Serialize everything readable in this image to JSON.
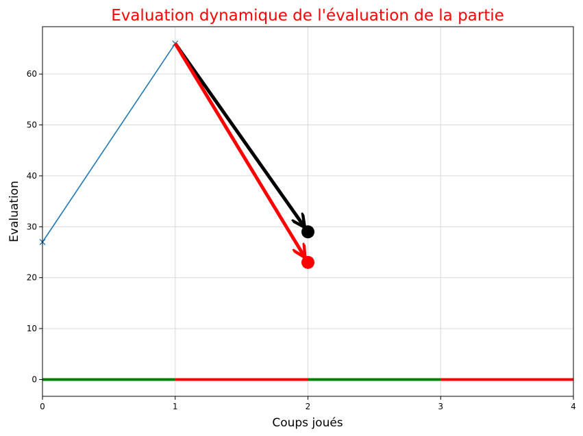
{
  "chart_data": {
    "type": "line",
    "title": "Evaluation dynamique de l'évaluation de la partie",
    "xlabel": "Coups joués",
    "ylabel": "Evaluation",
    "xlim": [
      0,
      4
    ],
    "ylim": [
      -3.3,
      69.3
    ],
    "xticks": [
      0,
      1,
      2,
      3,
      4
    ],
    "yticks": [
      0,
      10,
      20,
      30,
      40,
      50,
      60
    ],
    "grid": true,
    "series": [
      {
        "x": [
          0,
          1
        ],
        "y": [
          27,
          66
        ],
        "color": "#1f77b4",
        "marker": "x"
      }
    ],
    "arrows": [
      {
        "from": [
          1,
          66
        ],
        "to": [
          2,
          29
        ],
        "color": "#000000"
      },
      {
        "from": [
          1,
          66
        ],
        "to": [
          2,
          23
        ],
        "color": "#ff0000"
      }
    ],
    "points": [
      {
        "x": 2,
        "y": 29,
        "color": "#000000"
      },
      {
        "x": 2,
        "y": 23,
        "color": "#ff0000"
      }
    ],
    "baseline_segments": [
      {
        "x": [
          0,
          1
        ],
        "y": 0,
        "color": "#008000"
      },
      {
        "x": [
          1,
          2
        ],
        "y": 0,
        "color": "#ff0000"
      },
      {
        "x": [
          2,
          3
        ],
        "y": 0,
        "color": "#008000"
      },
      {
        "x": [
          3,
          4
        ],
        "y": 0,
        "color": "#ff0000"
      }
    ],
    "colors": {
      "title": "#ff0000",
      "grid": "#d9d9d9"
    }
  }
}
